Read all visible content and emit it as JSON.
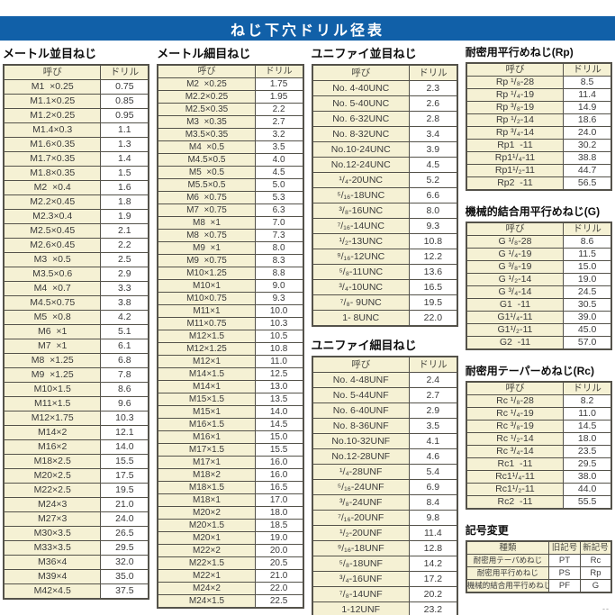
{
  "title": "ねじ下穴ドリル径表",
  "footer_mark": "--",
  "colors": {
    "banner_blue": "#1160a8",
    "cell_cream": "#f5f1d4",
    "border": "#54524a"
  },
  "sections": {
    "metric_coarse": {
      "title": "メートル並目ねじ",
      "headers": [
        "呼び",
        "ドリル"
      ],
      "rows": [
        [
          "M1  ×0.25",
          "0.75"
        ],
        [
          "M1.1×0.25",
          "0.85"
        ],
        [
          "M1.2×0.25",
          "0.95"
        ],
        [
          "M1.4×0.3",
          "1.1"
        ],
        [
          "M1.6×0.35",
          "1.3"
        ],
        [
          "M1.7×0.35",
          "1.4"
        ],
        [
          "M1.8×0.35",
          "1.5"
        ],
        [
          "M2  ×0.4",
          "1.6"
        ],
        [
          "M2.2×0.45",
          "1.8"
        ],
        [
          "M2.3×0.4",
          "1.9"
        ],
        [
          "M2.5×0.45",
          "2.1"
        ],
        [
          "M2.6×0.45",
          "2.2"
        ],
        [
          "M3  ×0.5",
          "2.5"
        ],
        [
          "M3.5×0.6",
          "2.9"
        ],
        [
          "M4  ×0.7",
          "3.3"
        ],
        [
          "M4.5×0.75",
          "3.8"
        ],
        [
          "M5  ×0.8",
          "4.2"
        ],
        [
          "M6  ×1",
          "5.1"
        ],
        [
          "M7  ×1",
          "6.1"
        ],
        [
          "M8  ×1.25",
          "6.8"
        ],
        [
          "M9  ×1.25",
          "7.8"
        ],
        [
          "M10×1.5",
          "8.6"
        ],
        [
          "M11×1.5",
          "9.6"
        ],
        [
          "M12×1.75",
          "10.3"
        ],
        [
          "M14×2",
          "12.1"
        ],
        [
          "M16×2",
          "14.0"
        ],
        [
          "M18×2.5",
          "15.5"
        ],
        [
          "M20×2.5",
          "17.5"
        ],
        [
          "M22×2.5",
          "19.5"
        ],
        [
          "M24×3",
          "21.0"
        ],
        [
          "M27×3",
          "24.0"
        ],
        [
          "M30×3.5",
          "26.5"
        ],
        [
          "M33×3.5",
          "29.5"
        ],
        [
          "M36×4",
          "32.0"
        ],
        [
          "M39×4",
          "35.0"
        ],
        [
          "M42×4.5",
          "37.5"
        ]
      ]
    },
    "metric_fine": {
      "title": "メートル細目ねじ",
      "headers": [
        "呼び",
        "ドリル"
      ],
      "rows": [
        [
          "M2  ×0.25",
          "1.75"
        ],
        [
          "M2.2×0.25",
          "1.95"
        ],
        [
          "M2.5×0.35",
          "2.2"
        ],
        [
          "M3  ×0.35",
          "2.7"
        ],
        [
          "M3.5×0.35",
          "3.2"
        ],
        [
          "M4  ×0.5",
          "3.5"
        ],
        [
          "M4.5×0.5",
          "4.0"
        ],
        [
          "M5  ×0.5",
          "4.5"
        ],
        [
          "M5.5×0.5",
          "5.0"
        ],
        [
          "M6  ×0.75",
          "5.3"
        ],
        [
          "M7  ×0.75",
          "6.3"
        ],
        [
          "M8  ×1",
          "7.0"
        ],
        [
          "M8  ×0.75",
          "7.3"
        ],
        [
          "M9  ×1",
          "8.0"
        ],
        [
          "M9  ×0.75",
          "8.3"
        ],
        [
          "M10×1.25",
          "8.8"
        ],
        [
          "M10×1",
          "9.0"
        ],
        [
          "M10×0.75",
          "9.3"
        ],
        [
          "M11×1",
          "10.0"
        ],
        [
          "M11×0.75",
          "10.3"
        ],
        [
          "M12×1.5",
          "10.5"
        ],
        [
          "M12×1.25",
          "10.8"
        ],
        [
          "M12×1",
          "11.0"
        ],
        [
          "M14×1.5",
          "12.5"
        ],
        [
          "M14×1",
          "13.0"
        ],
        [
          "M15×1.5",
          "13.5"
        ],
        [
          "M15×1",
          "14.0"
        ],
        [
          "M16×1.5",
          "14.5"
        ],
        [
          "M16×1",
          "15.0"
        ],
        [
          "M17×1.5",
          "15.5"
        ],
        [
          "M17×1",
          "16.0"
        ],
        [
          "M18×2",
          "16.0"
        ],
        [
          "M18×1.5",
          "16.5"
        ],
        [
          "M18×1",
          "17.0"
        ],
        [
          "M20×2",
          "18.0"
        ],
        [
          "M20×1.5",
          "18.5"
        ],
        [
          "M20×1",
          "19.0"
        ],
        [
          "M22×2",
          "20.0"
        ],
        [
          "M22×1.5",
          "20.5"
        ],
        [
          "M22×1",
          "21.0"
        ],
        [
          "M24×2",
          "22.0"
        ],
        [
          "M24×1.5",
          "22.5"
        ]
      ]
    },
    "unified_coarse": {
      "title": "ユニファイ並目ねじ",
      "headers": [
        "呼び",
        "ドリル"
      ],
      "rows": [
        [
          "No. 4-40UNC",
          "2.3"
        ],
        [
          "No. 5-40UNC",
          "2.6"
        ],
        [
          "No. 6-32UNC",
          "2.8"
        ],
        [
          "No. 8-32UNC",
          "3.4"
        ],
        [
          "No.10-24UNC",
          "3.9"
        ],
        [
          "No.12-24UNC",
          "4.5"
        ],
        [
          "¹/₄-20UNC",
          "5.2"
        ],
        [
          "⁵/₁₆-18UNC",
          "6.6"
        ],
        [
          "³/₈-16UNC",
          "8.0"
        ],
        [
          "⁷/₁₆-14UNC",
          "9.3"
        ],
        [
          "¹/₂-13UNC",
          "10.8"
        ],
        [
          "⁹/₁₆-12UNC",
          "12.2"
        ],
        [
          "⁵/₈-11UNC",
          "13.6"
        ],
        [
          "³/₄-10UNC",
          "16.5"
        ],
        [
          "⁷/₈- 9UNC",
          "19.5"
        ],
        [
          "1- 8UNC",
          "22.0"
        ]
      ]
    },
    "unified_fine": {
      "title": "ユニファイ細目ねじ",
      "headers": [
        "呼び",
        "ドリル"
      ],
      "rows": [
        [
          "No. 4-48UNF",
          "2.4"
        ],
        [
          "No. 5-44UNF",
          "2.7"
        ],
        [
          "No. 6-40UNF",
          "2.9"
        ],
        [
          "No. 8-36UNF",
          "3.5"
        ],
        [
          "No.10-32UNF",
          "4.1"
        ],
        [
          "No.12-28UNF",
          "4.6"
        ],
        [
          "¹/₄-28UNF",
          "5.4"
        ],
        [
          "⁵/₁₆-24UNF",
          "6.9"
        ],
        [
          "³/₈-24UNF",
          "8.4"
        ],
        [
          "⁷/₁₆-20UNF",
          "9.8"
        ],
        [
          "¹/₂-20UNF",
          "11.4"
        ],
        [
          "⁹/₁₆-18UNF",
          "12.8"
        ],
        [
          "⁵/₈-18UNF",
          "14.2"
        ],
        [
          "³/₄-16UNF",
          "17.2"
        ],
        [
          "⁷/₈-14UNF",
          "20.2"
        ],
        [
          "1-12UNF",
          "23.2"
        ]
      ]
    },
    "rp": {
      "title": "耐密用平行めねじ(Rp)",
      "headers": [
        "呼び",
        "ドリル"
      ],
      "rows": [
        [
          "Rp ¹/₈-28",
          "8.5"
        ],
        [
          "Rp ¹/₄-19",
          "11.4"
        ],
        [
          "Rp ³/₈-19",
          "14.9"
        ],
        [
          "Rp ¹/₂-14",
          "18.6"
        ],
        [
          "Rp ³/₄-14",
          "24.0"
        ],
        [
          "Rp1  -11",
          "30.2"
        ],
        [
          "Rp1¹/₄-11",
          "38.8"
        ],
        [
          "Rp1¹/₂-11",
          "44.7"
        ],
        [
          "Rp2  -11",
          "56.5"
        ]
      ]
    },
    "g": {
      "title": "機械的結合用平行めねじ(G)",
      "headers": [
        "呼び",
        "ドリル"
      ],
      "rows": [
        [
          "G ¹/₈-28",
          "8.6"
        ],
        [
          "G ¹/₄-19",
          "11.5"
        ],
        [
          "G ³/₈-19",
          "15.0"
        ],
        [
          "G ¹/₂-14",
          "19.0"
        ],
        [
          "G ³/₄-14",
          "24.5"
        ],
        [
          "G1  -11",
          "30.5"
        ],
        [
          "G1¹/₄-11",
          "39.0"
        ],
        [
          "G1¹/₂-11",
          "45.0"
        ],
        [
          "G2  -11",
          "57.0"
        ]
      ]
    },
    "rc": {
      "title": "耐密用テーパーめねじ(Rc)",
      "headers": [
        "呼び",
        "ドリル"
      ],
      "rows": [
        [
          "Rc ¹/₈-28",
          "8.2"
        ],
        [
          "Rc ¹/₄-19",
          "11.0"
        ],
        [
          "Rc ³/₈-19",
          "14.5"
        ],
        [
          "Rc ¹/₂-14",
          "18.0"
        ],
        [
          "Rc ³/₄-14",
          "23.5"
        ],
        [
          "Rc1  -11",
          "29.5"
        ],
        [
          "Rc1¹/₄-11",
          "38.0"
        ],
        [
          "Rc1¹/₂-11",
          "44.0"
        ],
        [
          "Rc2  -11",
          "55.5"
        ]
      ]
    },
    "symbol_change": {
      "title": "記号変更",
      "headers": [
        "種類",
        "旧記号",
        "新記号"
      ],
      "rows": [
        [
          "耐密用テーパめねじ",
          "PT",
          "Rc"
        ],
        [
          "耐密用平行めねじ",
          "PS",
          "Rp"
        ],
        [
          "機械的結合用平行めねじ",
          "PF",
          "G"
        ]
      ]
    }
  }
}
